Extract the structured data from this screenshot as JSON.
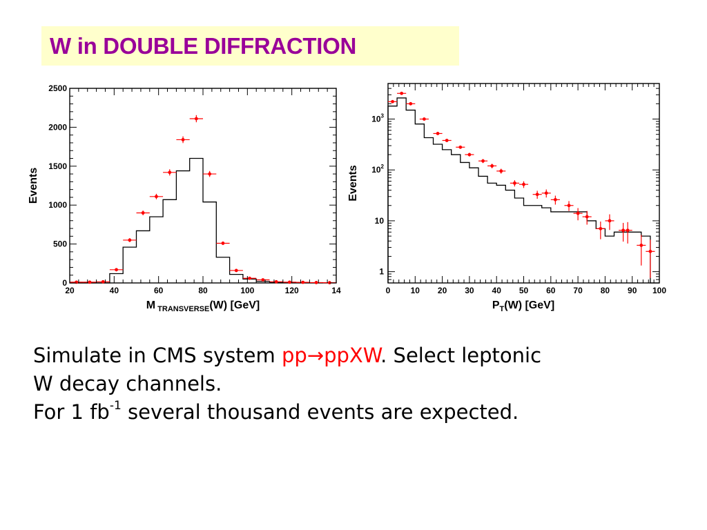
{
  "title": {
    "main": "W in DOUBLE DIFFRACTION",
    "colors": {
      "background": "#ffffcc",
      "text": "#990099"
    }
  },
  "body": {
    "line1_a": "Simulate in CMS system ",
    "line1_reaction": "pp→ppXW",
    "line1_b": ". Select leptonic",
    "line2": "W decay channels.",
    "line3_a": "For 1 fb",
    "line3_sup": "-1",
    "line3_b": " several thousand events are expected."
  },
  "chart_data": [
    {
      "type": "histogram",
      "ylabel": "Events",
      "xlabel_main": "M",
      "xlabel_sub": "TRANSVERSE",
      "xlabel_tail": "(W) [GeV]",
      "xlim": [
        20,
        140
      ],
      "ylim": [
        0,
        2500
      ],
      "x_ticks": [
        "20",
        "40",
        "60",
        "80",
        "100",
        "120",
        "14"
      ],
      "y_ticks": [
        "0",
        "500",
        "1000",
        "1500",
        "2000",
        "2500"
      ],
      "bin_edges": [
        20,
        26,
        32,
        38,
        44,
        50,
        56,
        62,
        68,
        74,
        80,
        86,
        92,
        98,
        104,
        110,
        116,
        122,
        128,
        134,
        140
      ],
      "series": [
        {
          "kind": "histogram-line",
          "color": "#000000",
          "values": [
            0,
            0,
            0,
            120,
            460,
            670,
            850,
            1070,
            1440,
            1600,
            1040,
            330,
            110,
            50,
            20,
            10,
            5,
            3,
            2,
            1
          ]
        },
        {
          "kind": "points",
          "color": "#ff0000",
          "values": [
            10,
            10,
            15,
            170,
            550,
            900,
            1110,
            1420,
            1840,
            2110,
            1400,
            510,
            160,
            60,
            40,
            15,
            10,
            8,
            5,
            3
          ],
          "errors": [
            5,
            5,
            5,
            20,
            25,
            30,
            35,
            40,
            43,
            46,
            38,
            23,
            13,
            8,
            6,
            4,
            3,
            3,
            2,
            2
          ]
        }
      ]
    },
    {
      "type": "histogram",
      "log_y": true,
      "ylabel": "Events",
      "xlabel_main": "P",
      "xlabel_sub": "T",
      "xlabel_tail": "(W) [GeV]",
      "xlim": [
        0,
        100
      ],
      "ylim": [
        0.6,
        5000
      ],
      "x_ticks": [
        "0",
        "10",
        "20",
        "30",
        "40",
        "50",
        "60",
        "70",
        "80",
        "90",
        "100"
      ],
      "y_ticks": [
        {
          "base": "1",
          "exp": ""
        },
        {
          "base": "10",
          "exp": ""
        },
        {
          "base": "10",
          "exp": "2"
        },
        {
          "base": "10",
          "exp": "3"
        }
      ],
      "bin_edges": [
        0,
        3.33,
        6.67,
        10,
        13.33,
        16.67,
        20,
        23.33,
        26.67,
        30,
        33.33,
        36.67,
        40,
        43.33,
        46.67,
        50,
        53.33,
        56.67,
        60,
        63.33,
        66.67,
        70,
        73.33,
        76.67,
        80,
        83.33,
        86.67,
        90,
        93.33,
        96.67,
        100
      ],
      "series": [
        {
          "kind": "histogram-line",
          "color": "#000000",
          "values": [
            1800,
            2600,
            1500,
            800,
            430,
            320,
            250,
            200,
            140,
            110,
            75,
            55,
            50,
            40,
            28,
            20,
            20,
            18,
            15,
            15,
            15,
            15,
            10,
            7,
            5,
            6,
            6,
            6,
            5,
            0.6
          ]
        },
        {
          "kind": "points",
          "color": "#ff0000",
          "values": [
            2200,
            3200,
            2000,
            1000,
            520,
            380,
            280,
            200,
            150,
            120,
            95,
            55,
            52,
            33,
            35,
            26,
            20,
            14,
            12,
            7,
            10,
            6.5,
            6.5,
            3.3,
            2.5
          ],
          "x": [
            1.67,
            5,
            8.33,
            13.33,
            18.33,
            21.67,
            26.67,
            30,
            35,
            38.33,
            41.67,
            46.67,
            50,
            55,
            58.33,
            61.67,
            66.67,
            70,
            73.33,
            78.33,
            81.67,
            86.67,
            88.33,
            93.33,
            96.67
          ],
          "errors_rel": [
            0.03,
            0.03,
            0.03,
            0.04,
            0.05,
            0.06,
            0.07,
            0.08,
            0.09,
            0.1,
            0.11,
            0.14,
            0.15,
            0.18,
            0.18,
            0.2,
            0.22,
            0.27,
            0.3,
            0.38,
            0.34,
            0.4,
            0.45,
            0.6,
            0.7
          ]
        }
      ]
    }
  ]
}
